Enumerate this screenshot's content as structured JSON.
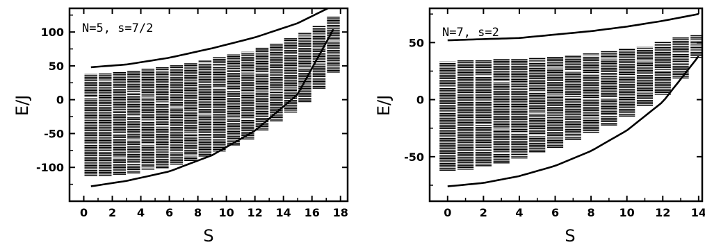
{
  "chart_data": [
    {
      "type": "scatter",
      "annotation": "N=5, s=7/2",
      "xlabel": "S",
      "ylabel": "E/J",
      "xlim": [
        -1,
        18.5
      ],
      "ylim": [
        -150,
        135
      ],
      "x_ticks": [
        0,
        2,
        4,
        6,
        8,
        10,
        12,
        14,
        16,
        18
      ],
      "y_ticks": [
        -100,
        -50,
        0,
        50,
        100
      ],
      "grid": false,
      "level_range": [
        [
          0.5,
          -113,
          38
        ],
        [
          1.5,
          -113,
          38
        ],
        [
          2.5,
          -111,
          40
        ],
        [
          3.5,
          -109,
          42
        ],
        [
          4.5,
          -105,
          45
        ],
        [
          5.5,
          -101,
          47
        ],
        [
          6.5,
          -96,
          50
        ],
        [
          7.5,
          -90,
          53
        ],
        [
          8.5,
          -84,
          57
        ],
        [
          9.5,
          -77,
          62
        ],
        [
          10.5,
          -68,
          66
        ],
        [
          11.5,
          -58,
          70
        ],
        [
          12.5,
          -46,
          76
        ],
        [
          13.5,
          -33,
          82
        ],
        [
          14.5,
          -19,
          90
        ],
        [
          15.5,
          -3,
          98
        ],
        [
          16.5,
          15,
          108
        ],
        [
          17.5,
          40,
          122
        ]
      ],
      "upper_bound": [
        [
          0.5,
          48
        ],
        [
          3,
          52
        ],
        [
          6,
          62
        ],
        [
          9,
          76
        ],
        [
          12,
          92
        ],
        [
          15,
          113
        ],
        [
          17.5,
          139
        ]
      ],
      "lower_bound": [
        [
          0.5,
          -128
        ],
        [
          3,
          -120
        ],
        [
          6,
          -106
        ],
        [
          9,
          -82
        ],
        [
          12,
          -46
        ],
        [
          15,
          8
        ],
        [
          17.5,
          104
        ]
      ]
    },
    {
      "type": "scatter",
      "annotation": "N=7, s=2",
      "xlabel": "S",
      "ylabel": "E/J",
      "xlim": [
        -1,
        14.2
      ],
      "ylim": [
        -89,
        80
      ],
      "x_ticks": [
        0,
        2,
        4,
        6,
        8,
        10,
        12,
        14
      ],
      "y_ticks": [
        -50,
        0,
        50
      ],
      "grid": false,
      "level_range": [
        [
          0,
          -63,
          33
        ],
        [
          1,
          -61,
          34
        ],
        [
          2,
          -59,
          34
        ],
        [
          3,
          -56,
          35
        ],
        [
          4,
          -52,
          35
        ],
        [
          5,
          -47,
          36
        ],
        [
          6,
          -42,
          37
        ],
        [
          7,
          -36,
          38
        ],
        [
          8,
          -30,
          40
        ],
        [
          9,
          -23,
          42
        ],
        [
          10,
          -15,
          44
        ],
        [
          11,
          -6,
          46
        ],
        [
          12,
          4,
          50
        ],
        [
          13,
          18,
          54
        ],
        [
          14,
          36,
          56
        ]
      ],
      "upper_bound": [
        [
          0,
          52
        ],
        [
          2,
          53
        ],
        [
          4,
          54
        ],
        [
          6,
          57
        ],
        [
          8,
          60
        ],
        [
          10,
          64
        ],
        [
          12,
          69
        ],
        [
          14,
          75
        ]
      ],
      "lower_bound": [
        [
          0,
          -76
        ],
        [
          2,
          -73
        ],
        [
          4,
          -67
        ],
        [
          6,
          -58
        ],
        [
          8,
          -45
        ],
        [
          10,
          -27
        ],
        [
          12,
          -2
        ],
        [
          14,
          38
        ]
      ]
    }
  ]
}
